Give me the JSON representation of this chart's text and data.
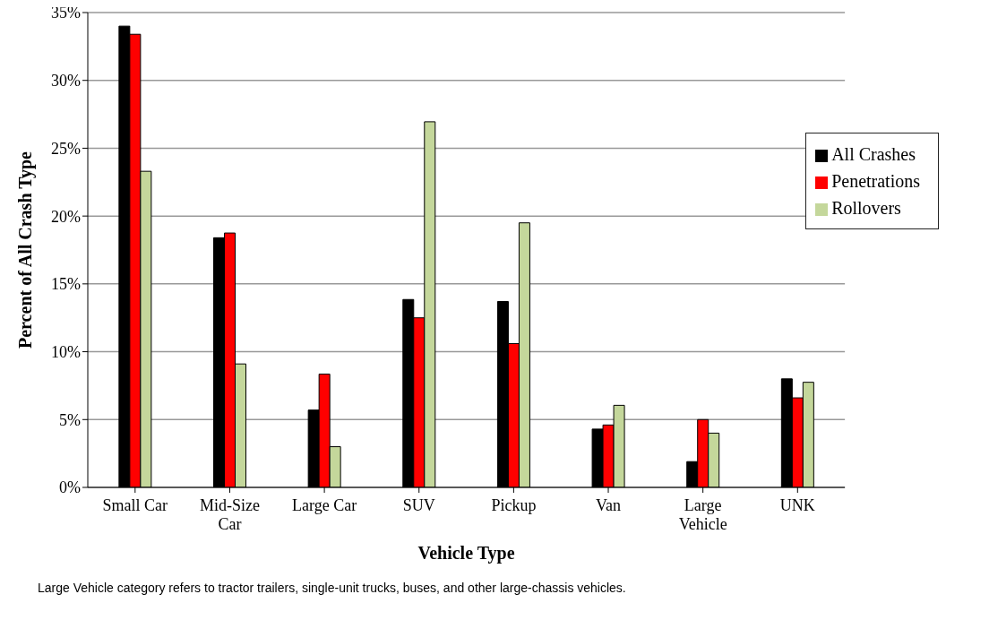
{
  "chart_data": {
    "type": "bar",
    "xlabel": "Vehicle Type",
    "ylabel": "Percent of All Crash Type",
    "categories": [
      "Small Car",
      "Mid-Size Car",
      "Large Car",
      "SUV",
      "Pickup",
      "Van",
      "Large Vehicle",
      "UNK"
    ],
    "series": [
      {
        "name": "All Crashes",
        "color": "#000000",
        "values": [
          34.0,
          18.4,
          5.7,
          13.85,
          13.7,
          4.3,
          1.9,
          8.0
        ]
      },
      {
        "name": "Penetrations",
        "color": "#ff0000",
        "values": [
          33.4,
          18.75,
          8.35,
          12.5,
          10.6,
          4.6,
          5.0,
          6.6
        ]
      },
      {
        "name": "Rollovers",
        "color": "#c4d79b",
        "values": [
          23.3,
          9.1,
          3.0,
          26.95,
          19.5,
          6.05,
          4.0,
          7.75
        ]
      }
    ],
    "ylim": [
      0,
      35
    ],
    "yticks": [
      {
        "value": 0,
        "label": "0%"
      },
      {
        "value": 5,
        "label": "5%"
      },
      {
        "value": 10,
        "label": "10%"
      },
      {
        "value": 15,
        "label": "15%"
      },
      {
        "value": 20,
        "label": "20%"
      },
      {
        "value": 25,
        "label": "25%"
      },
      {
        "value": 30,
        "label": "30%"
      },
      {
        "value": 35,
        "label": "35%"
      }
    ],
    "grid": "y",
    "legend": "right",
    "annotations": [
      "Large Vehicle category refers to tractor trailers, single-unit trucks, buses, and other  large-chassis vehicles."
    ]
  }
}
